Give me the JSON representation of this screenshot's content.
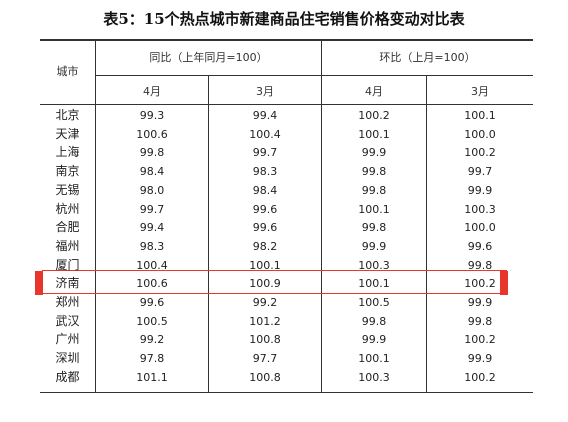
{
  "title": "表5：15个热点城市新建商品住宅销售价格变动对比表",
  "header": {
    "city": "城市",
    "yoy_group": "同比（上年同月=100）",
    "mom_group": "环比（上月=100）",
    "sub": [
      "4月",
      "3月",
      "4月",
      "3月"
    ]
  },
  "highlight_color": "#e8362d",
  "highlighted_city": "济南",
  "rows": [
    {
      "city": "北京",
      "v": [
        "99.3",
        "99.4",
        "100.2",
        "100.1"
      ]
    },
    {
      "city": "天津",
      "v": [
        "100.6",
        "100.4",
        "100.1",
        "100.0"
      ]
    },
    {
      "city": "上海",
      "v": [
        "99.8",
        "99.7",
        "99.9",
        "100.2"
      ]
    },
    {
      "city": "南京",
      "v": [
        "98.4",
        "98.3",
        "99.8",
        "99.7"
      ]
    },
    {
      "city": "无锡",
      "v": [
        "98.0",
        "98.4",
        "99.8",
        "99.9"
      ]
    },
    {
      "city": "杭州",
      "v": [
        "99.7",
        "99.6",
        "100.1",
        "100.3"
      ]
    },
    {
      "city": "合肥",
      "v": [
        "99.4",
        "99.6",
        "99.8",
        "100.0"
      ]
    },
    {
      "city": "福州",
      "v": [
        "98.3",
        "98.2",
        "99.9",
        "99.6"
      ]
    },
    {
      "city": "厦门",
      "v": [
        "100.4",
        "100.1",
        "100.3",
        "99.8"
      ]
    },
    {
      "city": "济南",
      "v": [
        "100.6",
        "100.9",
        "100.1",
        "100.2"
      ]
    },
    {
      "city": "郑州",
      "v": [
        "99.6",
        "99.2",
        "100.5",
        "99.9"
      ]
    },
    {
      "city": "武汉",
      "v": [
        "100.5",
        "101.2",
        "99.8",
        "99.8"
      ]
    },
    {
      "city": "广州",
      "v": [
        "99.2",
        "100.8",
        "99.9",
        "100.2"
      ]
    },
    {
      "city": "深圳",
      "v": [
        "97.8",
        "97.7",
        "100.1",
        "99.9"
      ]
    },
    {
      "city": "成都",
      "v": [
        "101.1",
        "100.8",
        "100.3",
        "100.2"
      ]
    }
  ]
}
